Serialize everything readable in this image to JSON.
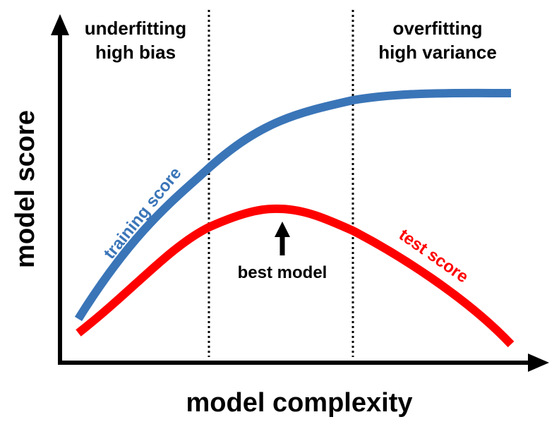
{
  "axes": {
    "x_label": "model complexity",
    "y_label": "model score"
  },
  "regions": {
    "left": {
      "line1": "underfitting",
      "line2": "high bias"
    },
    "right": {
      "line1": "overfitting",
      "line2": "high variance"
    }
  },
  "curves": {
    "training": {
      "label": "training score",
      "color": "#3a75b8"
    },
    "test": {
      "label": "test score",
      "color": "#ff0000"
    }
  },
  "annotation": {
    "label": "best model"
  },
  "colors": {
    "axis": "#000000",
    "divider": "#000000",
    "text": "#000000"
  }
}
